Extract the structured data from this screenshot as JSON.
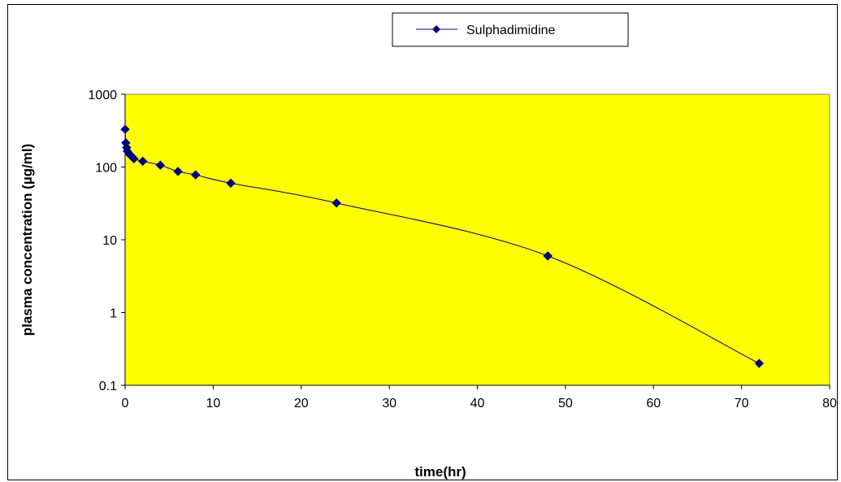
{
  "chart_data": {
    "type": "line",
    "title": "",
    "xlabel": "time(hr)",
    "ylabel": "plasma concentration (µg/ml)",
    "xlim": [
      0,
      80
    ],
    "ylim": [
      0.1,
      1000
    ],
    "yscale": "log",
    "x_ticks": [
      "0",
      "10",
      "20",
      "30",
      "40",
      "50",
      "60",
      "70",
      "80"
    ],
    "y_ticks": [
      "0.1",
      "1",
      "10",
      "100",
      "1000"
    ],
    "plot_background": "#ffff00",
    "grid": false,
    "legend_position": "top",
    "series": [
      {
        "name": "Sulphadimidine",
        "color": "#000080",
        "marker": "diamond",
        "smooth": true,
        "x": [
          0,
          0.08,
          0.17,
          0.25,
          0.5,
          0.75,
          1,
          2,
          4,
          6,
          8,
          12,
          24,
          48,
          72
        ],
        "y": [
          330,
          215,
          185,
          165,
          150,
          140,
          130,
          120,
          106,
          87,
          78,
          60,
          32,
          6,
          0.2
        ]
      }
    ]
  }
}
